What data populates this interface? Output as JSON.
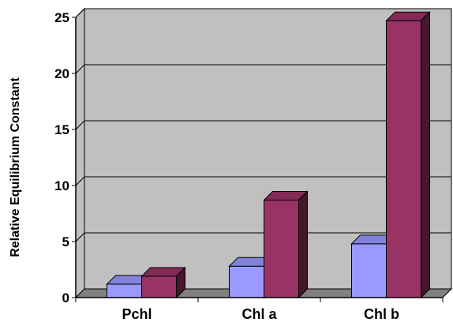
{
  "chart_data": {
    "type": "bar",
    "style": "3d-clustered-column",
    "categories": [
      "Pchl",
      "Chl a",
      "Chl b"
    ],
    "series": [
      {
        "values": [
          1.2,
          2.8,
          4.8
        ],
        "color": "#9999ff"
      },
      {
        "values": [
          1.9,
          8.7,
          24.7
        ],
        "color": "#993366"
      }
    ],
    "title": "",
    "xlabel": "",
    "ylabel": "Relative Equilibrium Constant",
    "ylim": [
      0,
      25
    ],
    "yticks": [
      0,
      5,
      10,
      15,
      20,
      25
    ],
    "grid": true,
    "legend": "none",
    "colors": {
      "plot_back": "#c0c0c0",
      "side_wall": "#c0c0c0",
      "floor": "#808080"
    }
  }
}
